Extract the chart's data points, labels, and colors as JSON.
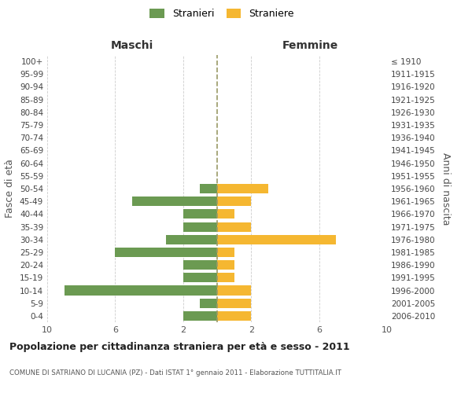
{
  "age_groups": [
    "100+",
    "95-99",
    "90-94",
    "85-89",
    "80-84",
    "75-79",
    "70-74",
    "65-69",
    "60-64",
    "55-59",
    "50-54",
    "45-49",
    "40-44",
    "35-39",
    "30-34",
    "25-29",
    "20-24",
    "15-19",
    "10-14",
    "5-9",
    "0-4"
  ],
  "birth_years": [
    "≤ 1910",
    "1911-1915",
    "1916-1920",
    "1921-1925",
    "1926-1930",
    "1931-1935",
    "1936-1940",
    "1941-1945",
    "1946-1950",
    "1951-1955",
    "1956-1960",
    "1961-1965",
    "1966-1970",
    "1971-1975",
    "1976-1980",
    "1981-1985",
    "1986-1990",
    "1991-1995",
    "1996-2000",
    "2001-2005",
    "2006-2010"
  ],
  "maschi": [
    0,
    0,
    0,
    0,
    0,
    0,
    0,
    0,
    0,
    0,
    1,
    5,
    2,
    2,
    3,
    6,
    2,
    2,
    9,
    1,
    2
  ],
  "femmine": [
    0,
    0,
    0,
    0,
    0,
    0,
    0,
    0,
    0,
    0,
    3,
    2,
    1,
    2,
    7,
    1,
    1,
    1,
    2,
    2,
    2
  ],
  "color_maschi": "#6b9a52",
  "color_femmine": "#f5b731",
  "title": "Popolazione per cittadinanza straniera per età e sesso - 2011",
  "subtitle": "COMUNE DI SATRIANO DI LUCANIA (PZ) - Dati ISTAT 1° gennaio 2011 - Elaborazione TUTTITALIA.IT",
  "xlabel_left": "Maschi",
  "xlabel_right": "Femmine",
  "ylabel_left": "Fasce di età",
  "ylabel_right": "Anni di nascita",
  "legend_maschi": "Stranieri",
  "legend_femmine": "Straniere",
  "xlim": 10,
  "background_color": "#ffffff",
  "grid_color": "#cccccc",
  "dashed_line_color": "#999966"
}
